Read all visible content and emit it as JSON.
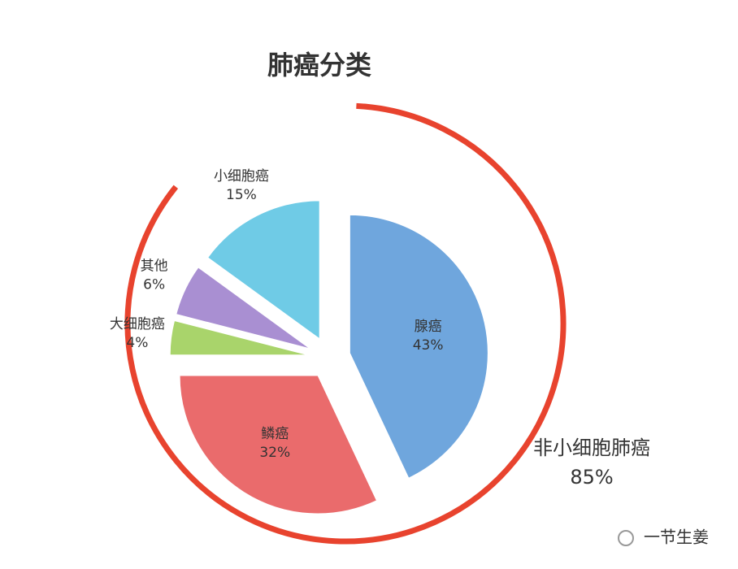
{
  "chart_data": {
    "type": "pie",
    "title": "肺癌分类",
    "categories": [
      "腺癌",
      "鳞癌",
      "大细胞癌",
      "其他",
      "小细胞癌"
    ],
    "values": [
      43,
      32,
      4,
      6,
      15
    ],
    "value_labels": [
      "43%",
      "32%",
      "4%",
      "6%",
      "15%"
    ],
    "colors": [
      "#6fa6dd",
      "#ea6b6c",
      "#a9d46b",
      "#a98fd2",
      "#6fcbe6"
    ],
    "group": {
      "name": "非小细胞肺癌",
      "value": 85,
      "value_label": "85%",
      "color": "#e8432e"
    }
  },
  "watermark": "一节生姜"
}
